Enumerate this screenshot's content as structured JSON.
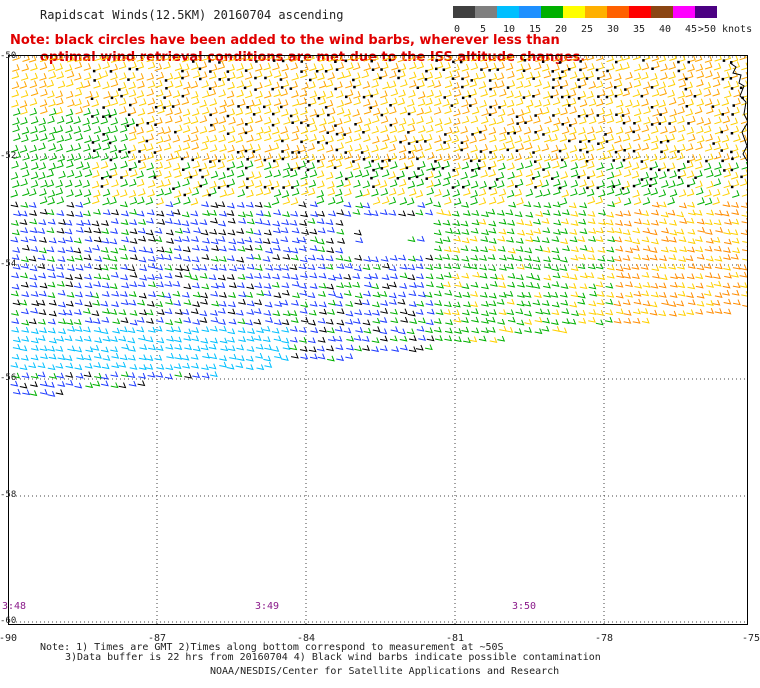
{
  "title": "Rapidscat Winds(12.5KM) 20160704 ascending",
  "note_line1": "Note: black circles have been added to the wind barbs, wherever less than",
  "note_line2": "optimal wind retrieval conditions are met due to the ISS altitude changes.",
  "colorbar": {
    "labels": [
      "0",
      "5",
      "10",
      "15",
      "20",
      "25",
      "30",
      "35",
      "40",
      "45",
      ">50 knots"
    ],
    "colors": [
      "#404040",
      "#7f7f7f",
      "#00bfff",
      "#1e90ff",
      "#00b000",
      "#ffff00",
      "#ffb000",
      "#ff6000",
      "#ff0000",
      "#8b4513",
      "#ff00ff",
      "#4b0082"
    ]
  },
  "lat_labels": [
    "-50",
    "-52",
    "-54",
    "-56",
    "-58",
    "-60"
  ],
  "lon_labels": [
    "-90",
    "-87",
    "-84",
    "-81",
    "-78",
    "-75"
  ],
  "time_labels": [
    "3:48",
    "3:49",
    "3:50"
  ],
  "footer": {
    "line1": "Note: 1) Times are GMT 2)Times along bottom correspond to measurement at ~50S",
    "line2": "3)Data buffer is 22 hrs from 20160704 4) Black wind barbs indicate possible contamination",
    "line3": "NOAA/NESDIS/Center for Satellite Applications and Research"
  }
}
